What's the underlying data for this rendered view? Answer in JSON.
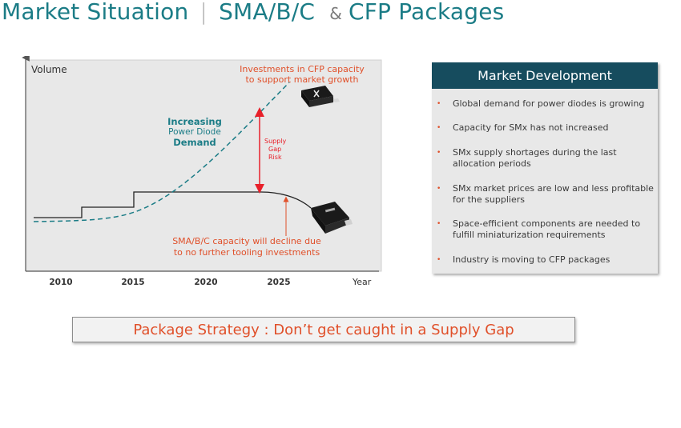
{
  "title": {
    "part1": "Market Situation",
    "separator": "|",
    "part2": "SMA/B/C",
    "ampersand": "&",
    "part3": "CFP Packages"
  },
  "chart": {
    "y_label": "Volume",
    "x_label": "Year",
    "x_ticks": [
      "2010",
      "2015",
      "2020",
      "2025"
    ],
    "demand_label": {
      "line1": "Increasing",
      "line2": "Power Diode",
      "line3": "Demand"
    },
    "gap_label": {
      "line1": "Supply",
      "line2": "Gap",
      "line3": "Risk"
    },
    "cfp_annotation": {
      "line1": "Investments in CFP capacity",
      "line2": "to support market growth"
    },
    "sma_annotation": {
      "line1": "SMA/B/C capacity will decline due",
      "line2": "to no further tooling investments"
    },
    "colors": {
      "demand": "#1b7c86",
      "capacity": "#222222",
      "gap": "#e8202a",
      "annotation": "#e0502a"
    }
  },
  "market_development": {
    "header": "Market Development",
    "items": [
      {
        "bullet": "•",
        "text": "Global demand for power diodes is growing"
      },
      {
        "bullet": "•",
        "text": "Capacity for SMx has not increased"
      },
      {
        "bullet": "•",
        "text": "SMx supply shortages during the last allocation periods"
      },
      {
        "bullet": "•",
        "text": "SMx market prices are low and less profitable for the suppliers"
      },
      {
        "bullet": "•",
        "text": "Space-efficient components are needed to fulfill miniaturization requirements"
      },
      {
        "bullet": "•",
        "text": "Industry is moving to CFP packages"
      }
    ]
  },
  "strategy": {
    "text": "Package Strategy :  Don’t get caught in a Supply Gap"
  }
}
